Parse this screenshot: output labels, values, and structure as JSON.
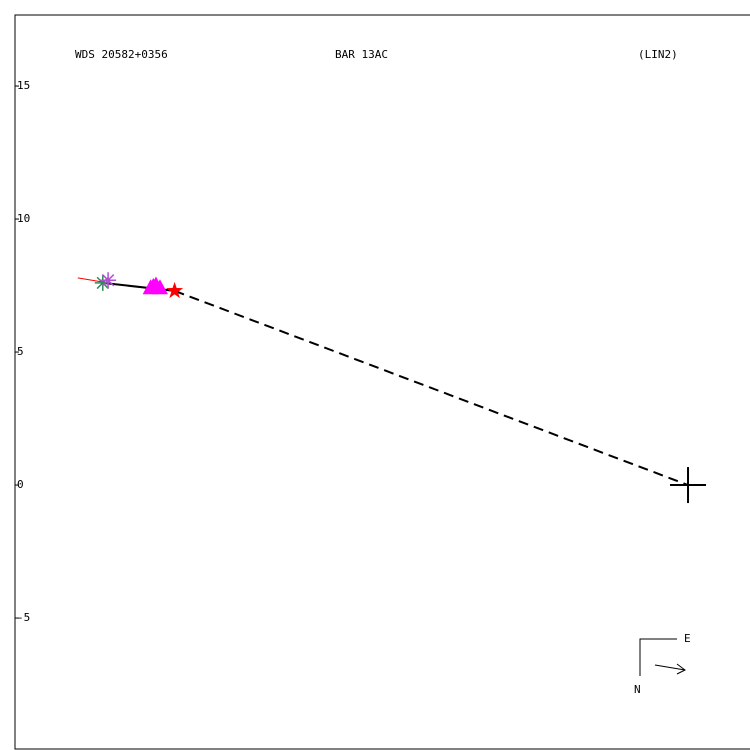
{
  "chart_data": {
    "type": "scatter",
    "title": "WDS 20582+0356",
    "subtitle": "BAR  13AC",
    "annotation": "(LIN2)",
    "compass": {
      "east": "E",
      "north": "N"
    },
    "xlim": [
      -25.3,
      2.33
    ],
    "ylim": [
      -9.96,
      17.67
    ],
    "yticks": [
      15,
      10,
      5,
      0,
      -5
    ],
    "series": [
      {
        "marker": "asterisk",
        "color": "#2e8b57",
        "x": [
          -22.0
        ],
        "values": [
          7.6
        ]
      },
      {
        "marker": "asterisk",
        "color": "#b050d0",
        "x": [
          -21.8
        ],
        "values": [
          7.7
        ]
      },
      {
        "marker": "triangle",
        "color": "#ff00ff",
        "x": [
          -20.2,
          -20.0,
          -19.85,
          -20.1
        ],
        "values": [
          7.4,
          7.5,
          7.4,
          7.45
        ]
      },
      {
        "marker": "star",
        "color": "#ff0000",
        "x": [
          -19.3
        ],
        "values": [
          7.3
        ]
      }
    ]
  }
}
